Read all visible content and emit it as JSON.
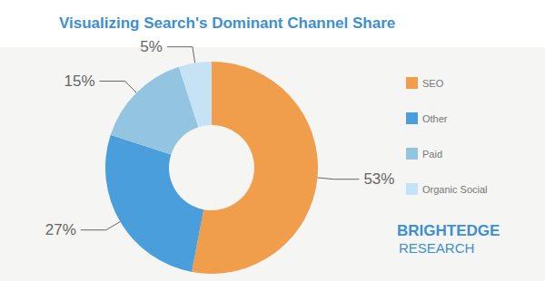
{
  "chart_data": {
    "type": "pie",
    "title": "Visualizing Search's Dominant Channel Share",
    "categories": [
      "SEO",
      "Other",
      "Paid",
      "Organic Social"
    ],
    "values": [
      53,
      27,
      15,
      5
    ],
    "value_labels": [
      "53%",
      "27%",
      "15%",
      "5%"
    ],
    "colors": [
      "#f19e4c",
      "#4a9edb",
      "#93c5e0",
      "#c6e3f5"
    ],
    "data_labels": true,
    "legend": "right",
    "annotations": [
      "BRIGHTEDGE",
      "RESEARCH"
    ]
  }
}
